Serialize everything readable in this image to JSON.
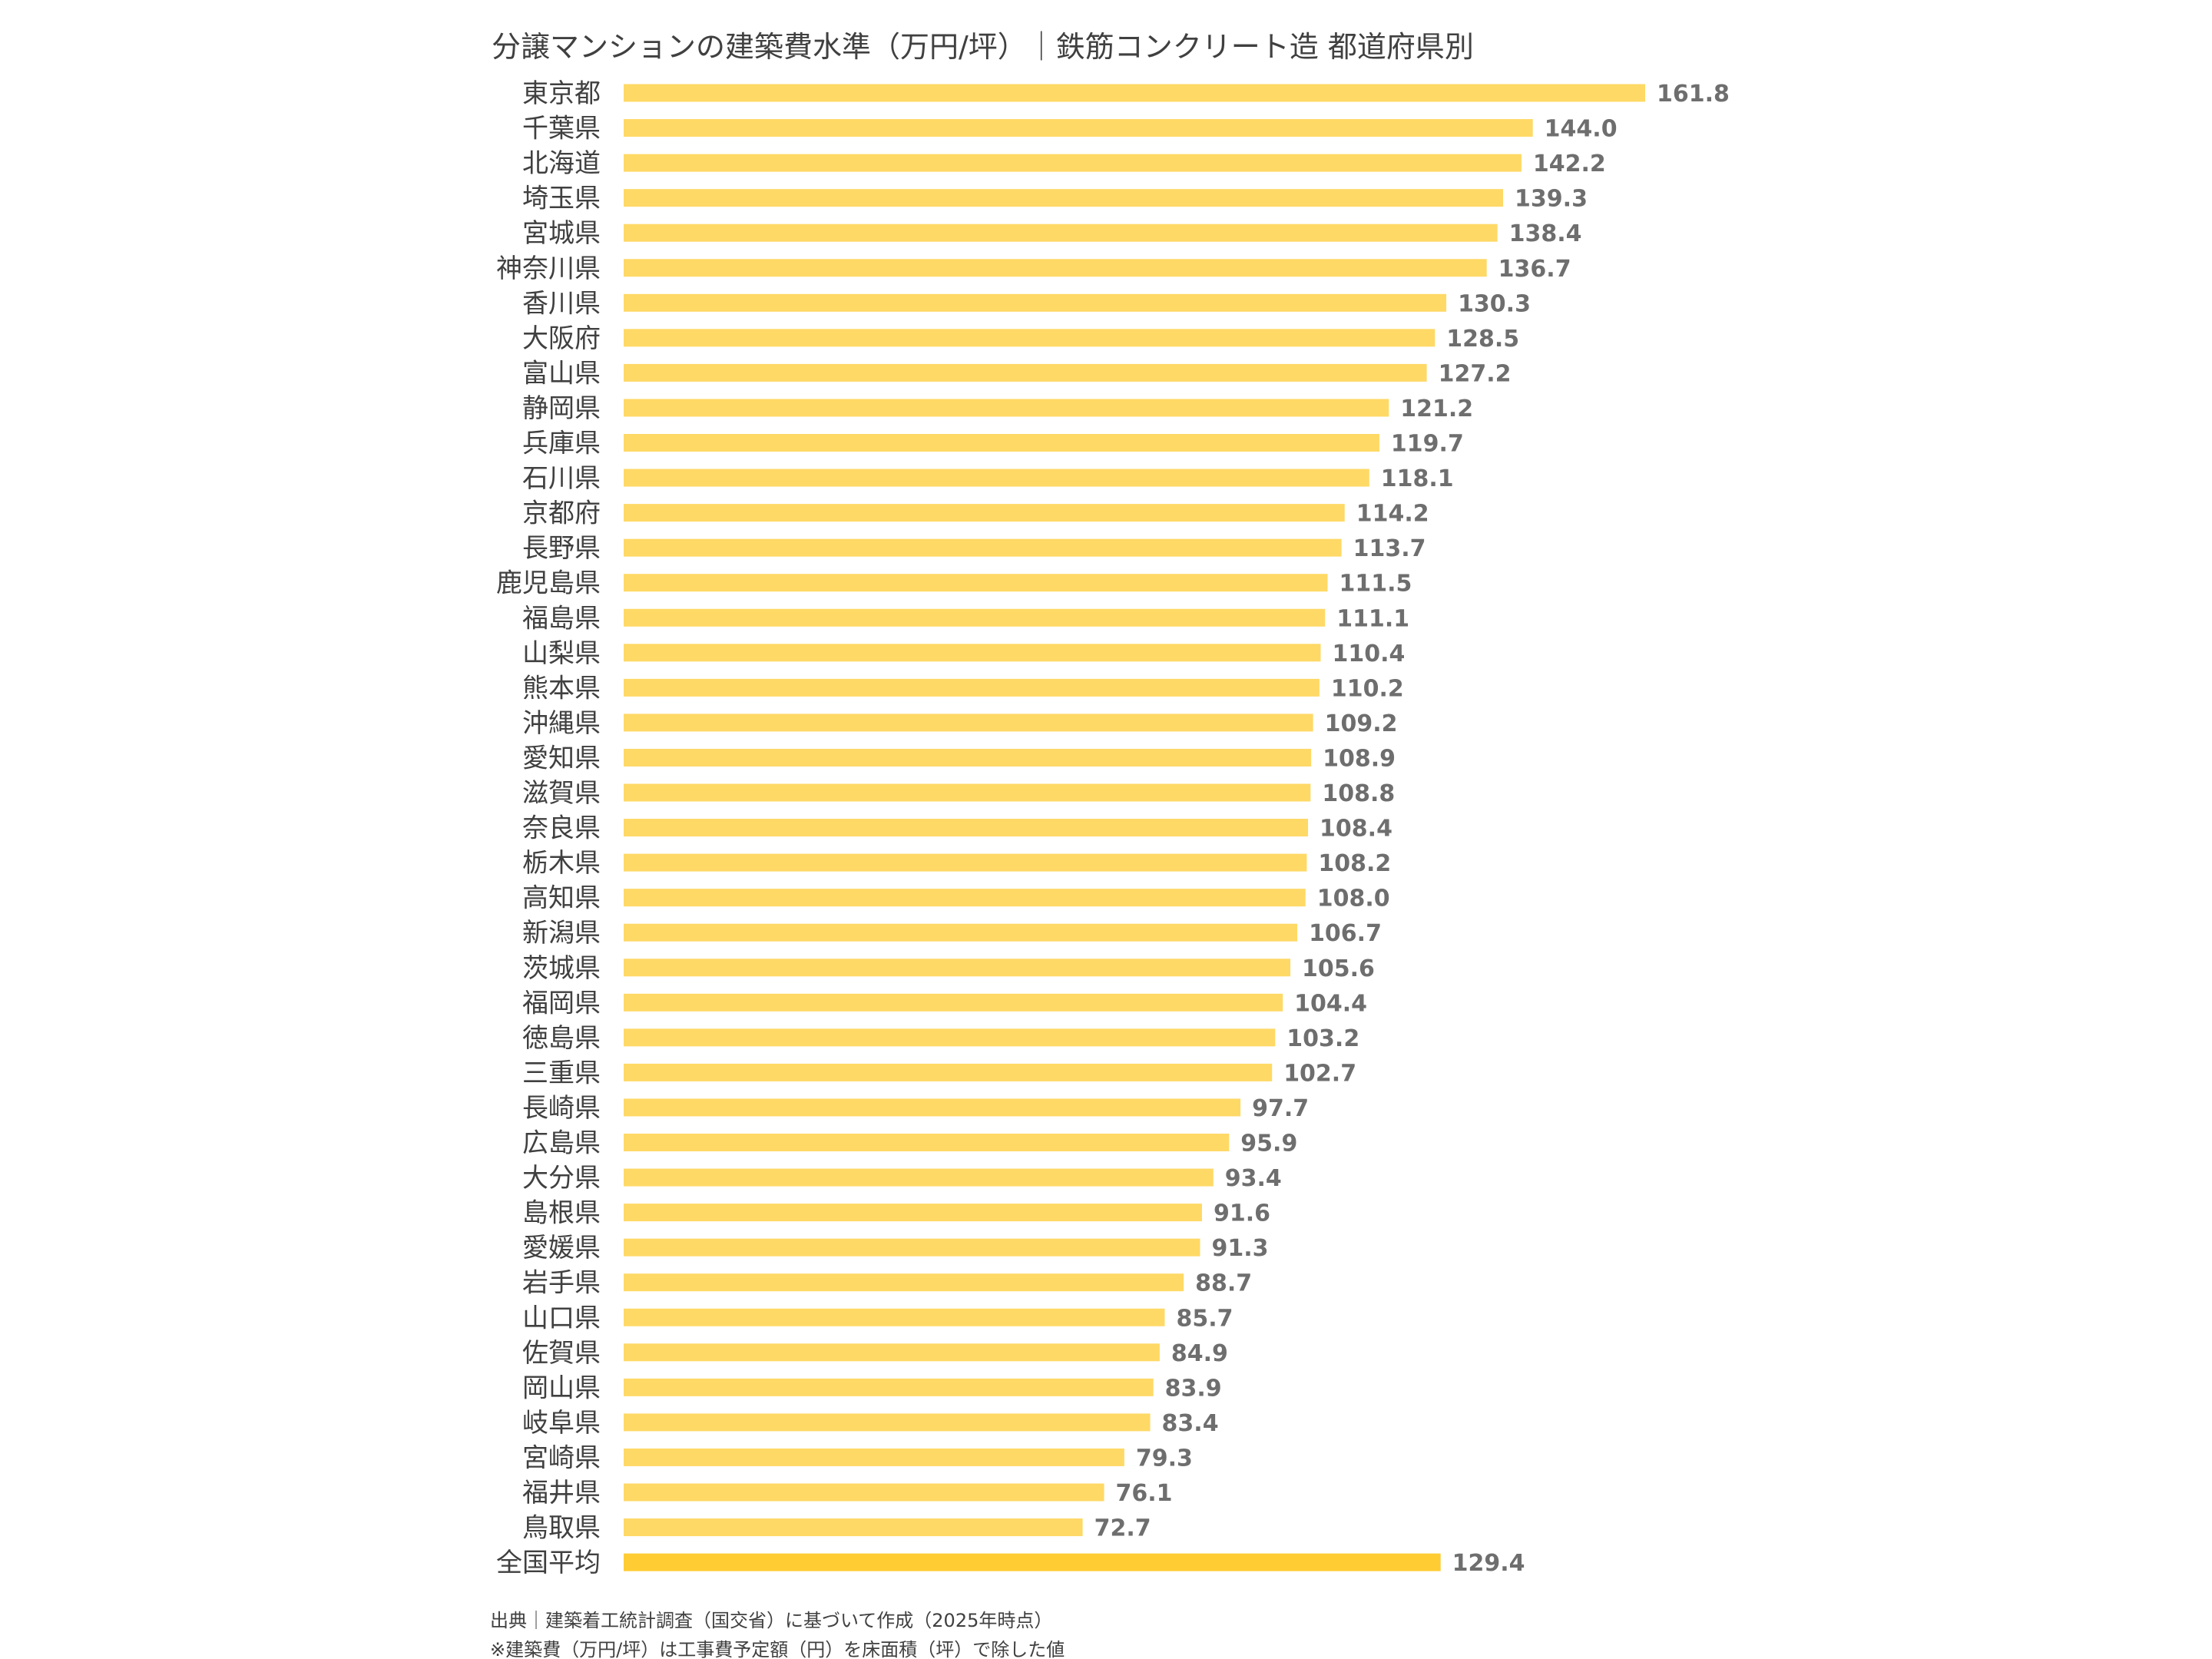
{
  "chart_data": {
    "type": "bar",
    "orientation": "horizontal",
    "title": "分譲マンションの建築費水準（万円/坪）｜鉄筋コンクリート造 都道府県別",
    "categories": [
      "東京都",
      "千葉県",
      "北海道",
      "埼玉県",
      "宮城県",
      "神奈川県",
      "香川県",
      "大阪府",
      "富山県",
      "静岡県",
      "兵庫県",
      "石川県",
      "京都府",
      "長野県",
      "鹿児島県",
      "福島県",
      "山梨県",
      "熊本県",
      "沖縄県",
      "愛知県",
      "滋賀県",
      "奈良県",
      "栃木県",
      "高知県",
      "新潟県",
      "茨城県",
      "福岡県",
      "徳島県",
      "三重県",
      "長崎県",
      "広島県",
      "大分県",
      "島根県",
      "愛媛県",
      "岩手県",
      "山口県",
      "佐賀県",
      "岡山県",
      "岐阜県",
      "宮崎県",
      "福井県",
      "鳥取県",
      "全国平均"
    ],
    "values": [
      161.8,
      144.0,
      142.2,
      139.3,
      138.4,
      136.7,
      130.3,
      128.5,
      127.2,
      121.2,
      119.7,
      118.1,
      114.2,
      113.7,
      111.5,
      111.1,
      110.4,
      110.2,
      109.2,
      108.9,
      108.8,
      108.4,
      108.2,
      108.0,
      106.7,
      105.6,
      104.4,
      103.2,
      102.7,
      97.7,
      95.9,
      93.4,
      91.6,
      91.3,
      88.7,
      85.7,
      84.9,
      83.9,
      83.4,
      79.3,
      76.1,
      72.7,
      129.4
    ],
    "value_labels": [
      "161.8",
      "144.0",
      "142.2",
      "139.3",
      "138.4",
      "136.7",
      "130.3",
      "128.5",
      "127.2",
      "121.2",
      "119.7",
      "118.1",
      "114.2",
      "113.7",
      "111.5",
      "111.1",
      "110.4",
      "110.2",
      "109.2",
      "108.9",
      "108.8",
      "108.4",
      "108.2",
      "108.0",
      "106.7",
      "105.6",
      "104.4",
      "103.2",
      "102.7",
      "97.7",
      "95.9",
      "93.4",
      "91.6",
      "91.3",
      "88.7",
      "85.7",
      "84.9",
      "83.9",
      "83.4",
      "79.3",
      "76.1",
      "72.7",
      "129.4"
    ],
    "highlight_index": 42,
    "colors": {
      "bar": "#FFD966",
      "highlight_bar": "#FFCC33",
      "label": "#404040",
      "value_label": "#6E6E6E"
    },
    "grid": false,
    "legend": "none",
    "xlim": [
      0,
      161.8
    ],
    "notes": [
      "出典｜建築着工統計調査（国交省）に基づいて作成（2025年時点）",
      "※建築費（万円/坪）は工事費予定額（円）を床面積（坪）で除した値"
    ]
  }
}
